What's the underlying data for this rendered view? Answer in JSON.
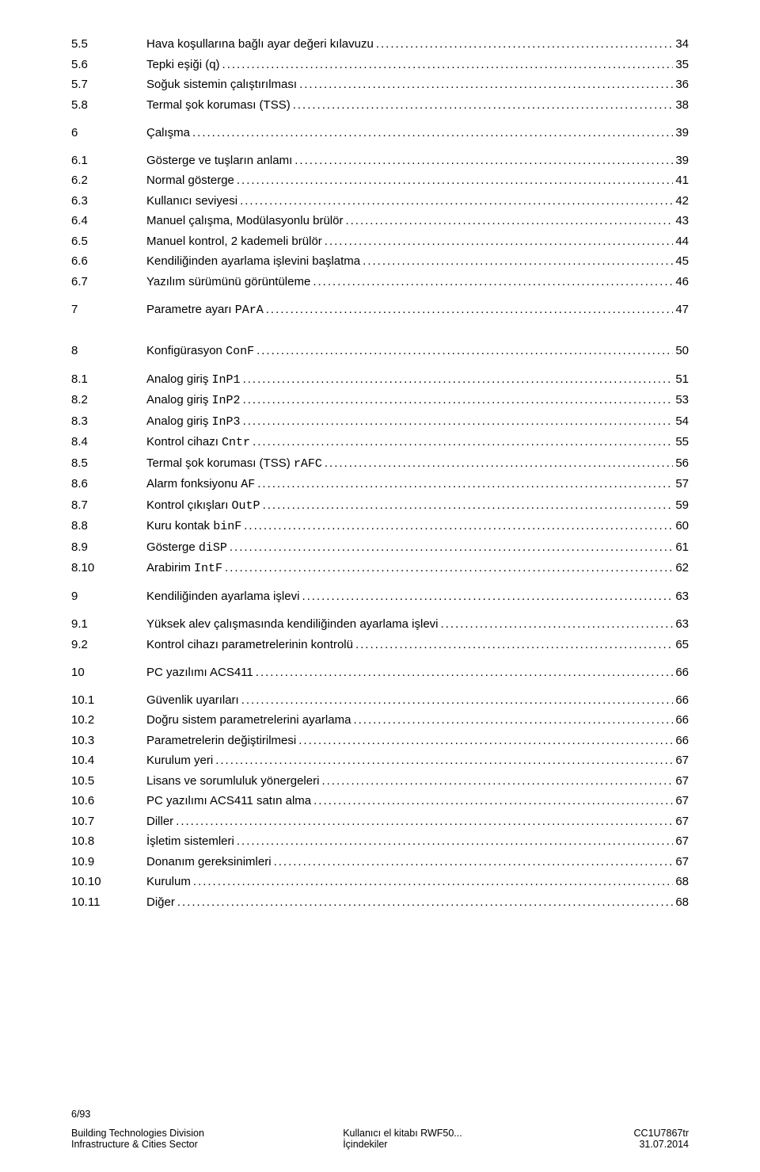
{
  "toc": [
    {
      "num": "5.5",
      "title": "Hava koşullarına bağlı ayar değeri kılavuzu",
      "page": "34",
      "gap_before": false
    },
    {
      "num": "5.6",
      "title": "Tepki eşiği (q)",
      "page": "35",
      "gap_before": false
    },
    {
      "num": "5.7",
      "title": "Soğuk sistemin çalıştırılması",
      "page": "36",
      "gap_before": false
    },
    {
      "num": "5.8",
      "title": "Termal şok koruması (TSS)",
      "page": "38",
      "gap_before": false
    },
    {
      "num": "6",
      "title": "Çalışma",
      "page": "39",
      "gap_before": true
    },
    {
      "num": "6.1",
      "title": "Gösterge ve tuşların anlamı",
      "page": "39",
      "gap_before": true
    },
    {
      "num": "6.2",
      "title": "Normal gösterge",
      "page": "41",
      "gap_before": false
    },
    {
      "num": "6.3",
      "title": "Kullanıcı seviyesi",
      "page": "42",
      "gap_before": false
    },
    {
      "num": "6.4",
      "title": "Manuel çalışma, Modülasyonlu brülör",
      "page": "43",
      "gap_before": false
    },
    {
      "num": "6.5",
      "title": "Manuel kontrol, 2 kademeli brülör",
      "page": "44",
      "gap_before": false
    },
    {
      "num": "6.6",
      "title": "Kendiliğinden ayarlama işlevini başlatma",
      "page": "45",
      "gap_before": false
    },
    {
      "num": "6.7",
      "title": "Yazılım sürümünü görüntüleme",
      "page": "46",
      "gap_before": false
    },
    {
      "num": "7",
      "title": "Parametre ayarı ",
      "code": "PArA",
      "page": "47",
      "gap_before": true
    },
    {
      "num": "8",
      "title": "Konfigürasyon ",
      "code": "ConF",
      "page": "50",
      "gap_before": true,
      "extra_gap": true
    },
    {
      "num": "8.1",
      "title": "Analog giriş ",
      "code": "InP1",
      "page": "51",
      "gap_before": true
    },
    {
      "num": "8.2",
      "title": "Analog giriş ",
      "code": "InP2",
      "page": "53",
      "gap_before": false
    },
    {
      "num": "8.3",
      "title": "Analog giriş ",
      "code": "InP3",
      "page": "54",
      "gap_before": false
    },
    {
      "num": "8.4",
      "title": "Kontrol cihazı ",
      "code": "Cntr",
      "page": "55",
      "gap_before": false
    },
    {
      "num": "8.5",
      "title": "Termal şok koruması (TSS) ",
      "code": "rAFC",
      "page": "56",
      "gap_before": false
    },
    {
      "num": "8.6",
      "title": "Alarm fonksiyonu ",
      "code": "AF",
      "page": "57",
      "gap_before": false
    },
    {
      "num": "8.7",
      "title": "Kontrol çıkışları ",
      "code": "OutP",
      "page": "59",
      "gap_before": false
    },
    {
      "num": "8.8",
      "title": "Kuru kontak ",
      "code": "binF",
      "page": "60",
      "gap_before": false
    },
    {
      "num": "8.9",
      "title": "Gösterge ",
      "code": "diSP",
      "page": "61",
      "gap_before": false
    },
    {
      "num": "8.10",
      "title": "Arabirim ",
      "code": "IntF",
      "page": "62",
      "gap_before": false
    },
    {
      "num": "9",
      "title": "Kendiliğinden ayarlama işlevi",
      "page": "63",
      "gap_before": true
    },
    {
      "num": "9.1",
      "title": "Yüksek alev çalışmasında kendiliğinden ayarlama işlevi",
      "page": "63",
      "gap_before": true
    },
    {
      "num": "9.2",
      "title": "Kontrol cihazı parametrelerinin kontrolü",
      "page": "65",
      "gap_before": false
    },
    {
      "num": "10",
      "title": "PC yazılımı ACS411",
      "page": "66",
      "gap_before": true
    },
    {
      "num": "10.1",
      "title": "Güvenlik uyarıları",
      "page": "66",
      "gap_before": true
    },
    {
      "num": "10.2",
      "title": "Doğru sistem parametrelerini ayarlama",
      "page": "66",
      "gap_before": false
    },
    {
      "num": "10.3",
      "title": "Parametrelerin değiştirilmesi",
      "page": "66",
      "gap_before": false
    },
    {
      "num": "10.4",
      "title": "Kurulum yeri",
      "page": "67",
      "gap_before": false
    },
    {
      "num": "10.5",
      "title": "Lisans ve sorumluluk yönergeleri",
      "page": "67",
      "gap_before": false
    },
    {
      "num": "10.6",
      "title": "PC yazılımı ACS411 satın alma",
      "page": "67",
      "gap_before": false
    },
    {
      "num": "10.7",
      "title": "Diller",
      "page": "67",
      "gap_before": false
    },
    {
      "num": "10.8",
      "title": "İşletim sistemleri",
      "page": "67",
      "gap_before": false
    },
    {
      "num": "10.9",
      "title": "Donanım gereksinimleri",
      "page": "67",
      "gap_before": false
    },
    {
      "num": "10.10",
      "title": "Kurulum",
      "page": "68",
      "gap_before": false
    },
    {
      "num": "10.11",
      "title": "Diğer",
      "page": "68",
      "gap_before": false
    }
  ],
  "footer": {
    "page_indicator": "6/93",
    "left1": "Building Technologies Division",
    "left2": "Infrastructure & Cities Sector",
    "mid1": "Kullanıcı el kitabı RWF50...",
    "mid2": "İçindekiler",
    "right1": "CC1U7867tr",
    "right2": "31.07.2014"
  }
}
